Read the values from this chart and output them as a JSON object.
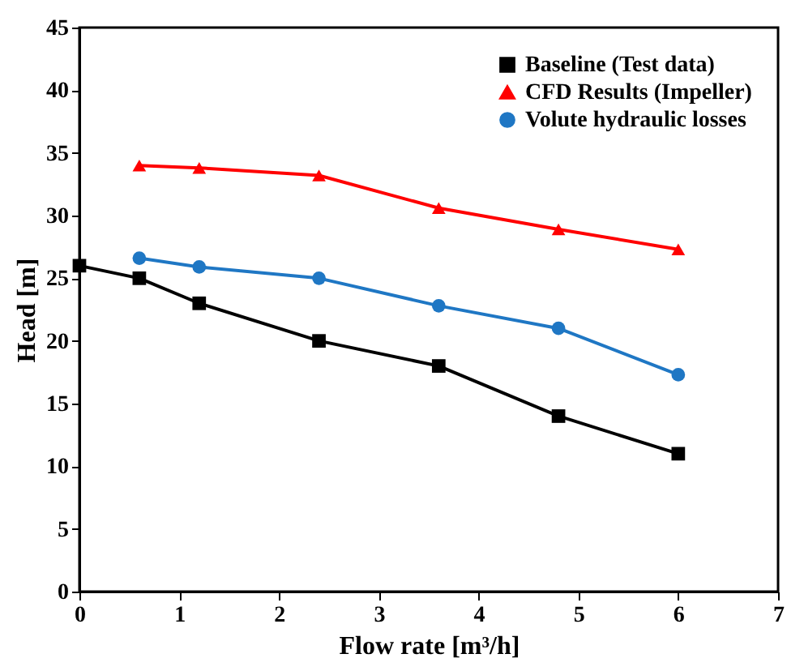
{
  "chart_data": {
    "type": "line",
    "xlabel": "Flow rate [m³/h]",
    "ylabel": "Head [m]",
    "xlim": [
      0,
      7
    ],
    "xticks": [
      0,
      1,
      2,
      3,
      4,
      5,
      6,
      7
    ],
    "ylim": [
      0,
      45
    ],
    "yticks": [
      0,
      5,
      10,
      15,
      20,
      25,
      30,
      35,
      40,
      45
    ],
    "grid": false,
    "legend": "top right",
    "line_style": "solid",
    "series": [
      {
        "name": "Baseline (Test data)",
        "color": "#000000",
        "marker": "square",
        "x": [
          0,
          0.6,
          1.2,
          2.4,
          3.6,
          4.8,
          6
        ],
        "values": [
          26,
          25,
          23,
          20,
          18,
          14,
          11
        ]
      },
      {
        "name": "CFD Results (Impeller)",
        "color": "#ff0000",
        "marker": "triangle",
        "x": [
          0.6,
          1.2,
          2.4,
          3.6,
          4.8,
          6
        ],
        "values": [
          34,
          33.8,
          33.2,
          30.6,
          28.9,
          27.3
        ]
      },
      {
        "name": "Volute hydraulic losses",
        "color": "#1f77c4",
        "marker": "circle",
        "x": [
          0.6,
          1.2,
          2.4,
          3.6,
          4.8,
          6
        ],
        "values": [
          26.6,
          25.9,
          25,
          22.8,
          21,
          17.3
        ]
      }
    ]
  }
}
